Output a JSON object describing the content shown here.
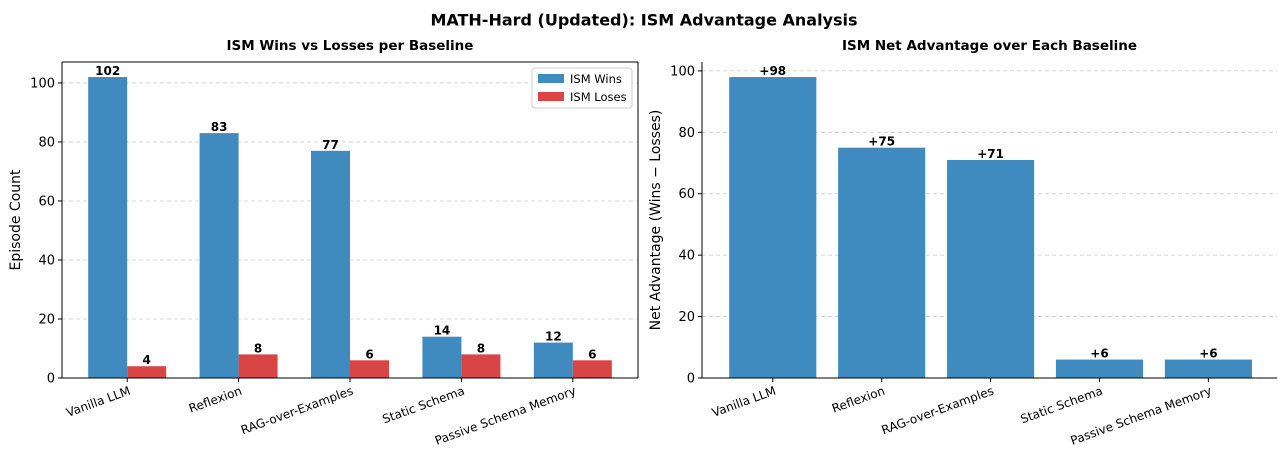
{
  "title": "MATH-Hard (Updated): ISM Advantage Analysis",
  "chart_data": [
    {
      "type": "grouped_bar",
      "title": "ISM Wins vs Losses per Baseline",
      "ylabel": "Episode Count",
      "categories": [
        "Vanilla LLM",
        "Reflexion",
        "RAG-over-Examples",
        "Static Schema",
        "Passive Schema Memory"
      ],
      "series": [
        {
          "name": "ISM Wins",
          "color": "#3f8bc0",
          "values": [
            102,
            83,
            77,
            14,
            12
          ]
        },
        {
          "name": "ISM Loses",
          "color": "#d94545",
          "values": [
            4,
            8,
            6,
            8,
            6
          ]
        }
      ],
      "ylim": [
        0,
        107.1
      ],
      "yticks": [
        0,
        20,
        40,
        60,
        80,
        100
      ],
      "grid": true,
      "legend": "upper right"
    },
    {
      "type": "bar",
      "title": "ISM Net Advantage over Each Baseline",
      "ylabel": "Net Advantage (Wins − Losses)",
      "categories": [
        "Vanilla LLM",
        "Reflexion",
        "RAG-over-Examples",
        "Static Schema",
        "Passive Schema Memory"
      ],
      "values": [
        98,
        75,
        71,
        6,
        6
      ],
      "value_labels": [
        "+98",
        "+75",
        "+71",
        "+6",
        "+6"
      ],
      "color": "#3f8bc0",
      "ylim": [
        0,
        102.9
      ],
      "yticks": [
        0,
        20,
        40,
        60,
        80,
        100
      ],
      "grid": true
    }
  ]
}
